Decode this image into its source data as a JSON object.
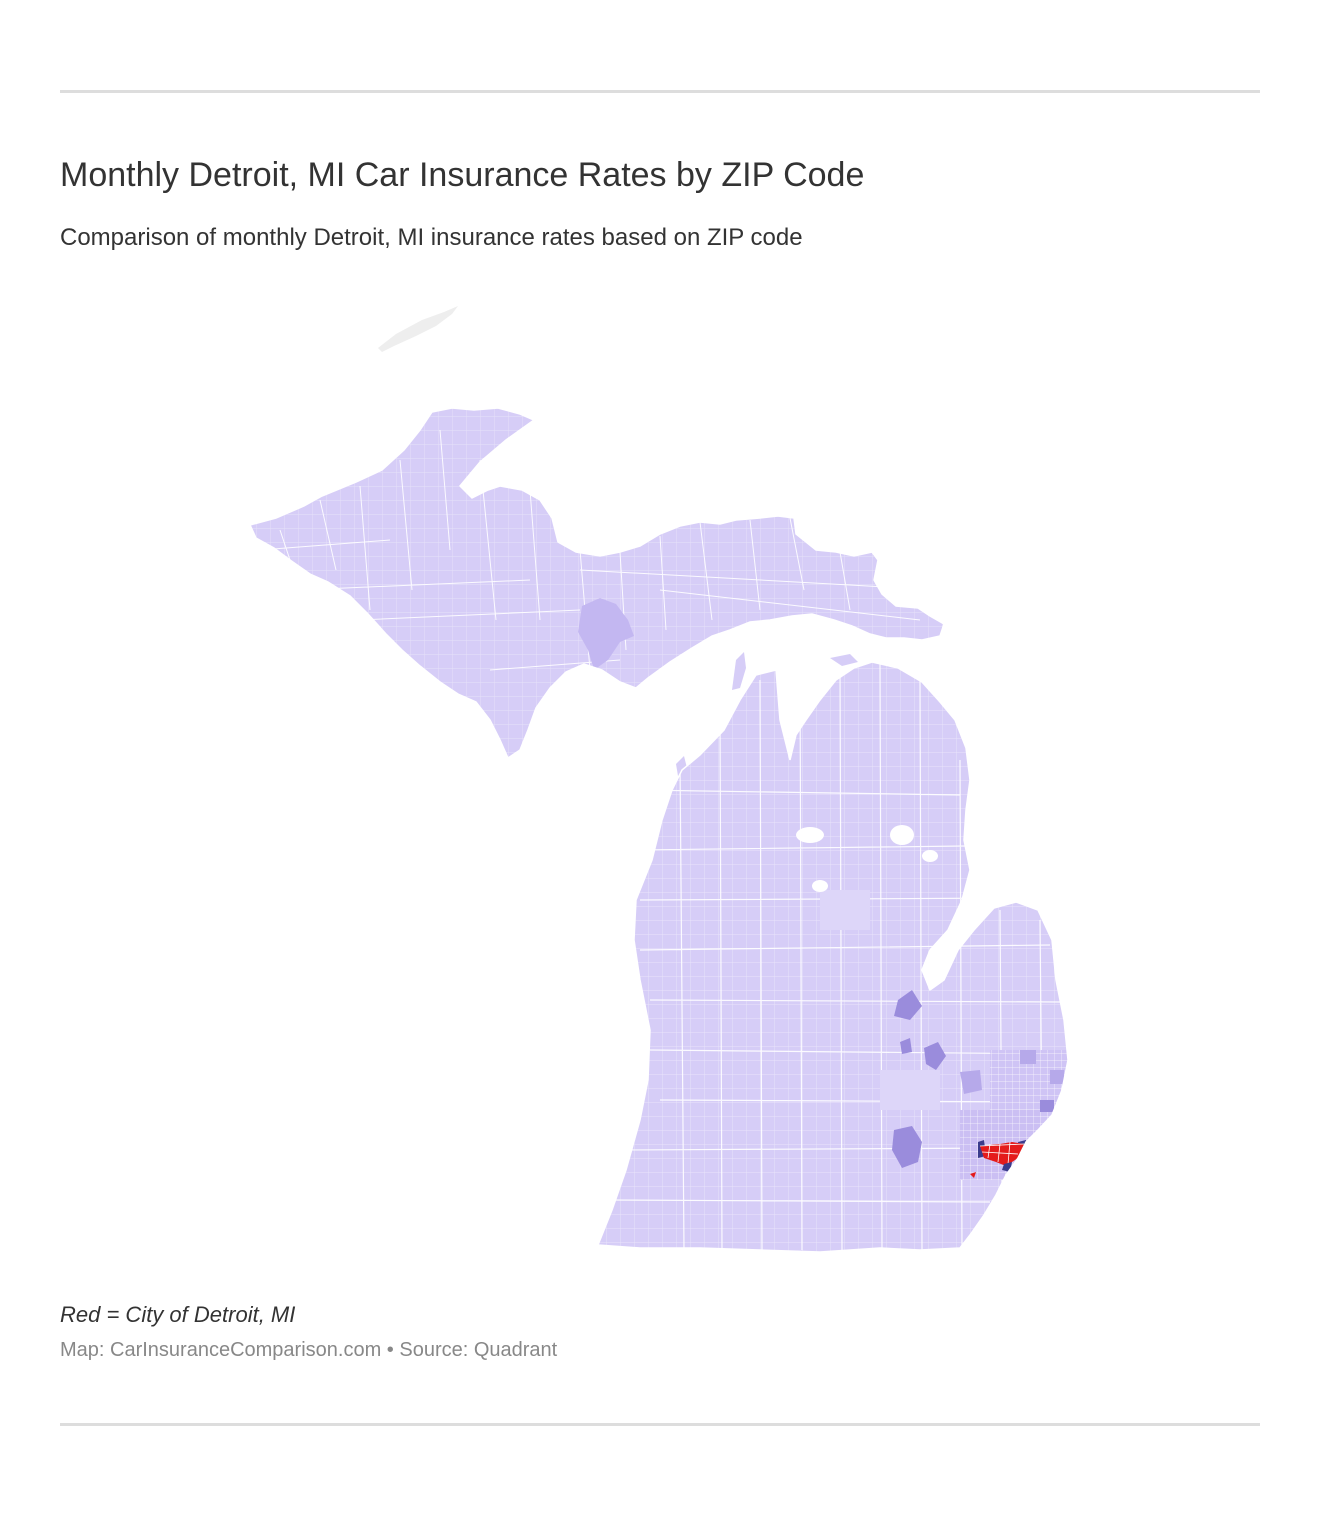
{
  "header": {
    "title": "Monthly Detroit, MI Car Insurance Rates by ZIP Code",
    "subtitle": "Comparison of monthly Detroit, MI insurance rates based on ZIP code"
  },
  "map": {
    "region": "Michigan",
    "colors": {
      "land": "#d6cdf7",
      "land_light": "#ddd6f9",
      "medium": "#b6a9ea",
      "dark": "#9a8cdc",
      "navy": "#3a3c8c",
      "highlight": "#e41b1b",
      "lake_island": "#eeeeee",
      "borders": "#ffffff"
    }
  },
  "footer": {
    "note": "Red = City of Detroit, MI",
    "credit": "Map: CarInsuranceComparison.com • Source: Quadrant"
  }
}
